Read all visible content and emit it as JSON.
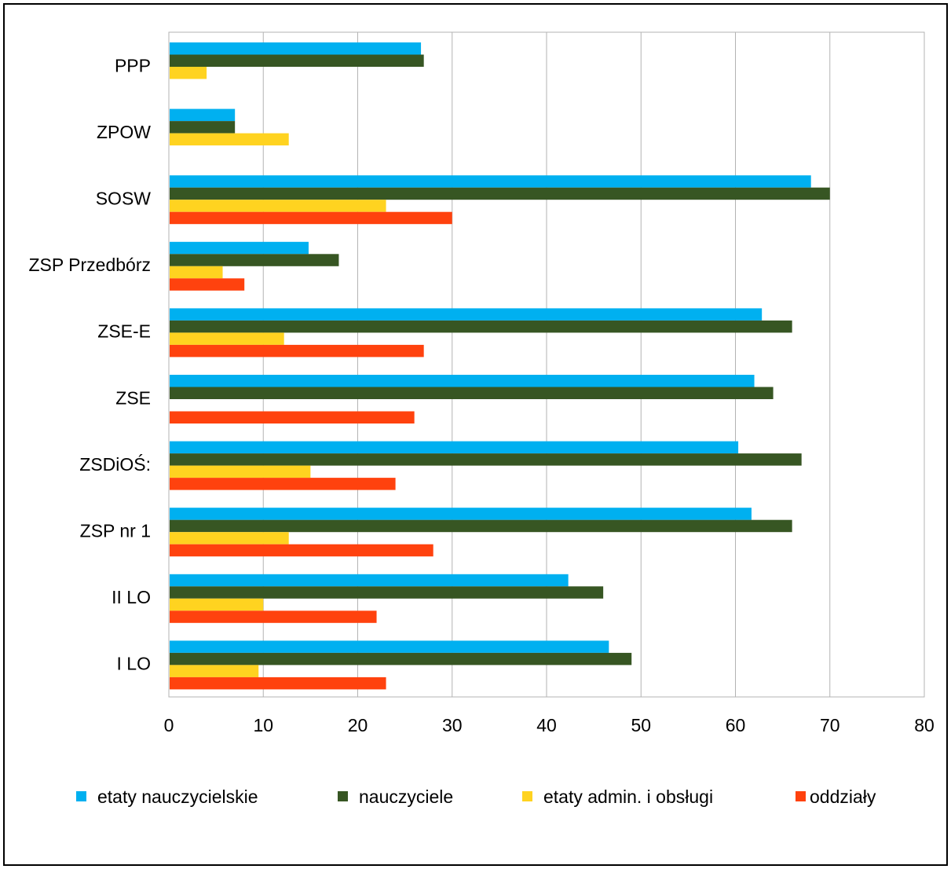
{
  "chart_data": {
    "type": "bar",
    "orientation": "horizontal",
    "categories": [
      "PPP",
      "ZPOW",
      "SOSW",
      "ZSP Przedbórz",
      "ZSE-E",
      "ZSE",
      "ZSDiOŚ:",
      "ZSP nr 1",
      "II LO",
      "I LO"
    ],
    "series": [
      {
        "name": "etaty nauczycielskie",
        "color": "#00b0f0",
        "values": [
          26.7,
          7,
          68,
          14.8,
          62.8,
          62,
          60.3,
          61.7,
          42.3,
          46.6
        ]
      },
      {
        "name": "nauczyciele",
        "color": "#375623",
        "values": [
          27,
          7,
          70,
          18,
          66,
          64,
          67,
          66,
          46,
          49
        ]
      },
      {
        "name": "etaty admin. i obsługi",
        "color": "#ffd320",
        "values": [
          4,
          12.7,
          23,
          5.7,
          12.2,
          0,
          15,
          12.7,
          10,
          9.5
        ]
      },
      {
        "name": "oddziały",
        "color": "#ff420e",
        "values": [
          0,
          0,
          30,
          8,
          27,
          26,
          24,
          28,
          22,
          23
        ]
      }
    ],
    "xlim": [
      0,
      80
    ],
    "xticks": [
      "0",
      "10",
      "20",
      "30",
      "40",
      "50",
      "60",
      "70",
      "80"
    ],
    "grid": true,
    "legend_position": "bottom",
    "title": "",
    "xlabel": "",
    "ylabel": ""
  }
}
